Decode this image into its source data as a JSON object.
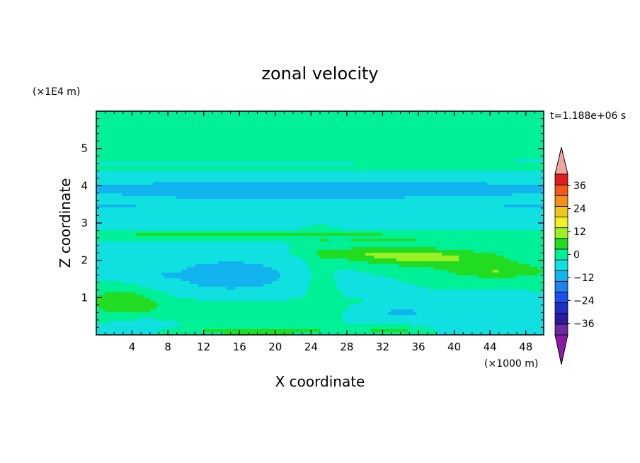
{
  "chart_data": {
    "type": "heatmap",
    "title": "zonal velocity",
    "xlabel": "X coordinate",
    "ylabel": "Z coordinate",
    "x_unit_label": "(×1000 m)",
    "y_unit_label": "(×1E4 m)",
    "time_label": "t=1.188e+06 s",
    "xlim": [
      0,
      50
    ],
    "ylim": [
      0,
      6
    ],
    "x_ticks": [
      4,
      8,
      12,
      16,
      20,
      24,
      28,
      32,
      36,
      40,
      44,
      48
    ],
    "x_tick_labels": [
      "4",
      "8",
      "12",
      "16",
      "20",
      "24",
      "28",
      "32",
      "36",
      "40",
      "44",
      "48"
    ],
    "y_ticks": [
      1,
      2,
      3,
      4,
      5
    ],
    "y_tick_labels": [
      "1",
      "2",
      "3",
      "4",
      "5"
    ],
    "colorbar": {
      "levels": [
        -42,
        -36,
        -30,
        -24,
        -18,
        -12,
        -6,
        0,
        6,
        12,
        18,
        24,
        30,
        36,
        42
      ],
      "colors": [
        "#6a2ca0",
        "#2a1a9e",
        "#1e2fc8",
        "#1f4ef0",
        "#1f82f0",
        "#12b4f0",
        "#10e0e0",
        "#00f098",
        "#22dc22",
        "#9cef22",
        "#f0f022",
        "#f0c51c",
        "#f0901a",
        "#f05a16",
        "#e01e1e"
      ],
      "under_color": "#8a1aa8",
      "over_color": "#f0a4a0",
      "tick_values": [
        36,
        24,
        12,
        0,
        -12,
        -24,
        -36
      ],
      "tick_labels": [
        "36",
        "24",
        "12",
        "0",
        "−12",
        "−24",
        "−36"
      ]
    },
    "field": {
      "background": 0,
      "components": [
        {
          "x": 12,
          "z": 5.15,
          "sx": 8,
          "sz": 0.07,
          "amp": 4
        },
        {
          "x": 21,
          "z": 5.08,
          "sx": 7,
          "sz": 0.06,
          "amp": 5
        },
        {
          "x": 40,
          "z": 5.05,
          "sx": 9,
          "sz": 0.08,
          "amp": 3
        },
        {
          "x": 23,
          "z": 5.85,
          "sx": 9,
          "sz": 0.2,
          "amp": 4
        },
        {
          "x": 18,
          "z": 4.75,
          "sx": 16,
          "sz": 0.05,
          "amp": 3
        },
        {
          "x": 15,
          "z": 4.45,
          "sx": 14,
          "sz": 0.06,
          "amp": 3
        },
        {
          "x": 42,
          "z": 4.5,
          "sx": 10,
          "sz": 0.06,
          "amp": 3
        },
        {
          "x": 25,
          "z": 3.9,
          "sx": 40,
          "sz": 0.3,
          "amp": -10
        },
        {
          "x": 20,
          "z": 3.72,
          "sx": 9,
          "sz": 0.04,
          "amp": -10
        },
        {
          "x": 2,
          "z": 3.47,
          "sx": 3,
          "sz": 0.03,
          "amp": -10
        },
        {
          "x": 48,
          "z": 3.47,
          "sx": 3,
          "sz": 0.03,
          "amp": -10
        },
        {
          "x": 25,
          "z": 3.25,
          "sx": 40,
          "sz": 0.2,
          "amp": -5
        },
        {
          "x": 18,
          "z": 2.7,
          "sx": 26,
          "sz": 0.05,
          "amp": 8
        },
        {
          "x": 32,
          "z": 2.55,
          "sx": 14,
          "sz": 0.05,
          "amp": 6
        },
        {
          "x": 38,
          "z": 2.05,
          "sx": 9,
          "sz": 0.25,
          "amp": 12
        },
        {
          "x": 45,
          "z": 1.7,
          "sx": 6,
          "sz": 0.2,
          "amp": 11
        },
        {
          "x": 31,
          "z": 2.2,
          "sx": 7,
          "sz": 0.2,
          "amp": 8
        },
        {
          "x": 25,
          "z": 1.4,
          "sx": 1.6,
          "sz": 1.0,
          "amp": 5
        },
        {
          "x": 15,
          "z": 1.6,
          "sx": 9,
          "sz": 0.55,
          "amp": -9
        },
        {
          "x": 9,
          "z": 1.6,
          "sx": 1.6,
          "sz": 0.05,
          "amp": -8
        },
        {
          "x": 44,
          "z": 0.9,
          "sx": 4,
          "sz": 0.12,
          "amp": -6
        },
        {
          "x": 34,
          "z": 0.6,
          "sx": 5,
          "sz": 0.2,
          "amp": -7
        },
        {
          "x": 3,
          "z": 0.9,
          "sx": 4,
          "sz": 0.35,
          "amp": 11
        },
        {
          "x": 15,
          "z": 0.7,
          "sx": 11,
          "sz": 0.25,
          "amp": 5
        },
        {
          "x": 18,
          "z": 0.1,
          "sx": 8,
          "sz": 0.1,
          "amp": 11
        },
        {
          "x": 33,
          "z": 0.12,
          "sx": 3,
          "sz": 0.1,
          "amp": 9
        },
        {
          "x": 5,
          "z": 0.25,
          "sx": 3,
          "sz": 0.2,
          "amp": -4
        },
        {
          "x": 45,
          "z": 0.3,
          "sx": 6,
          "sz": 0.25,
          "amp": -4
        }
      ]
    }
  }
}
